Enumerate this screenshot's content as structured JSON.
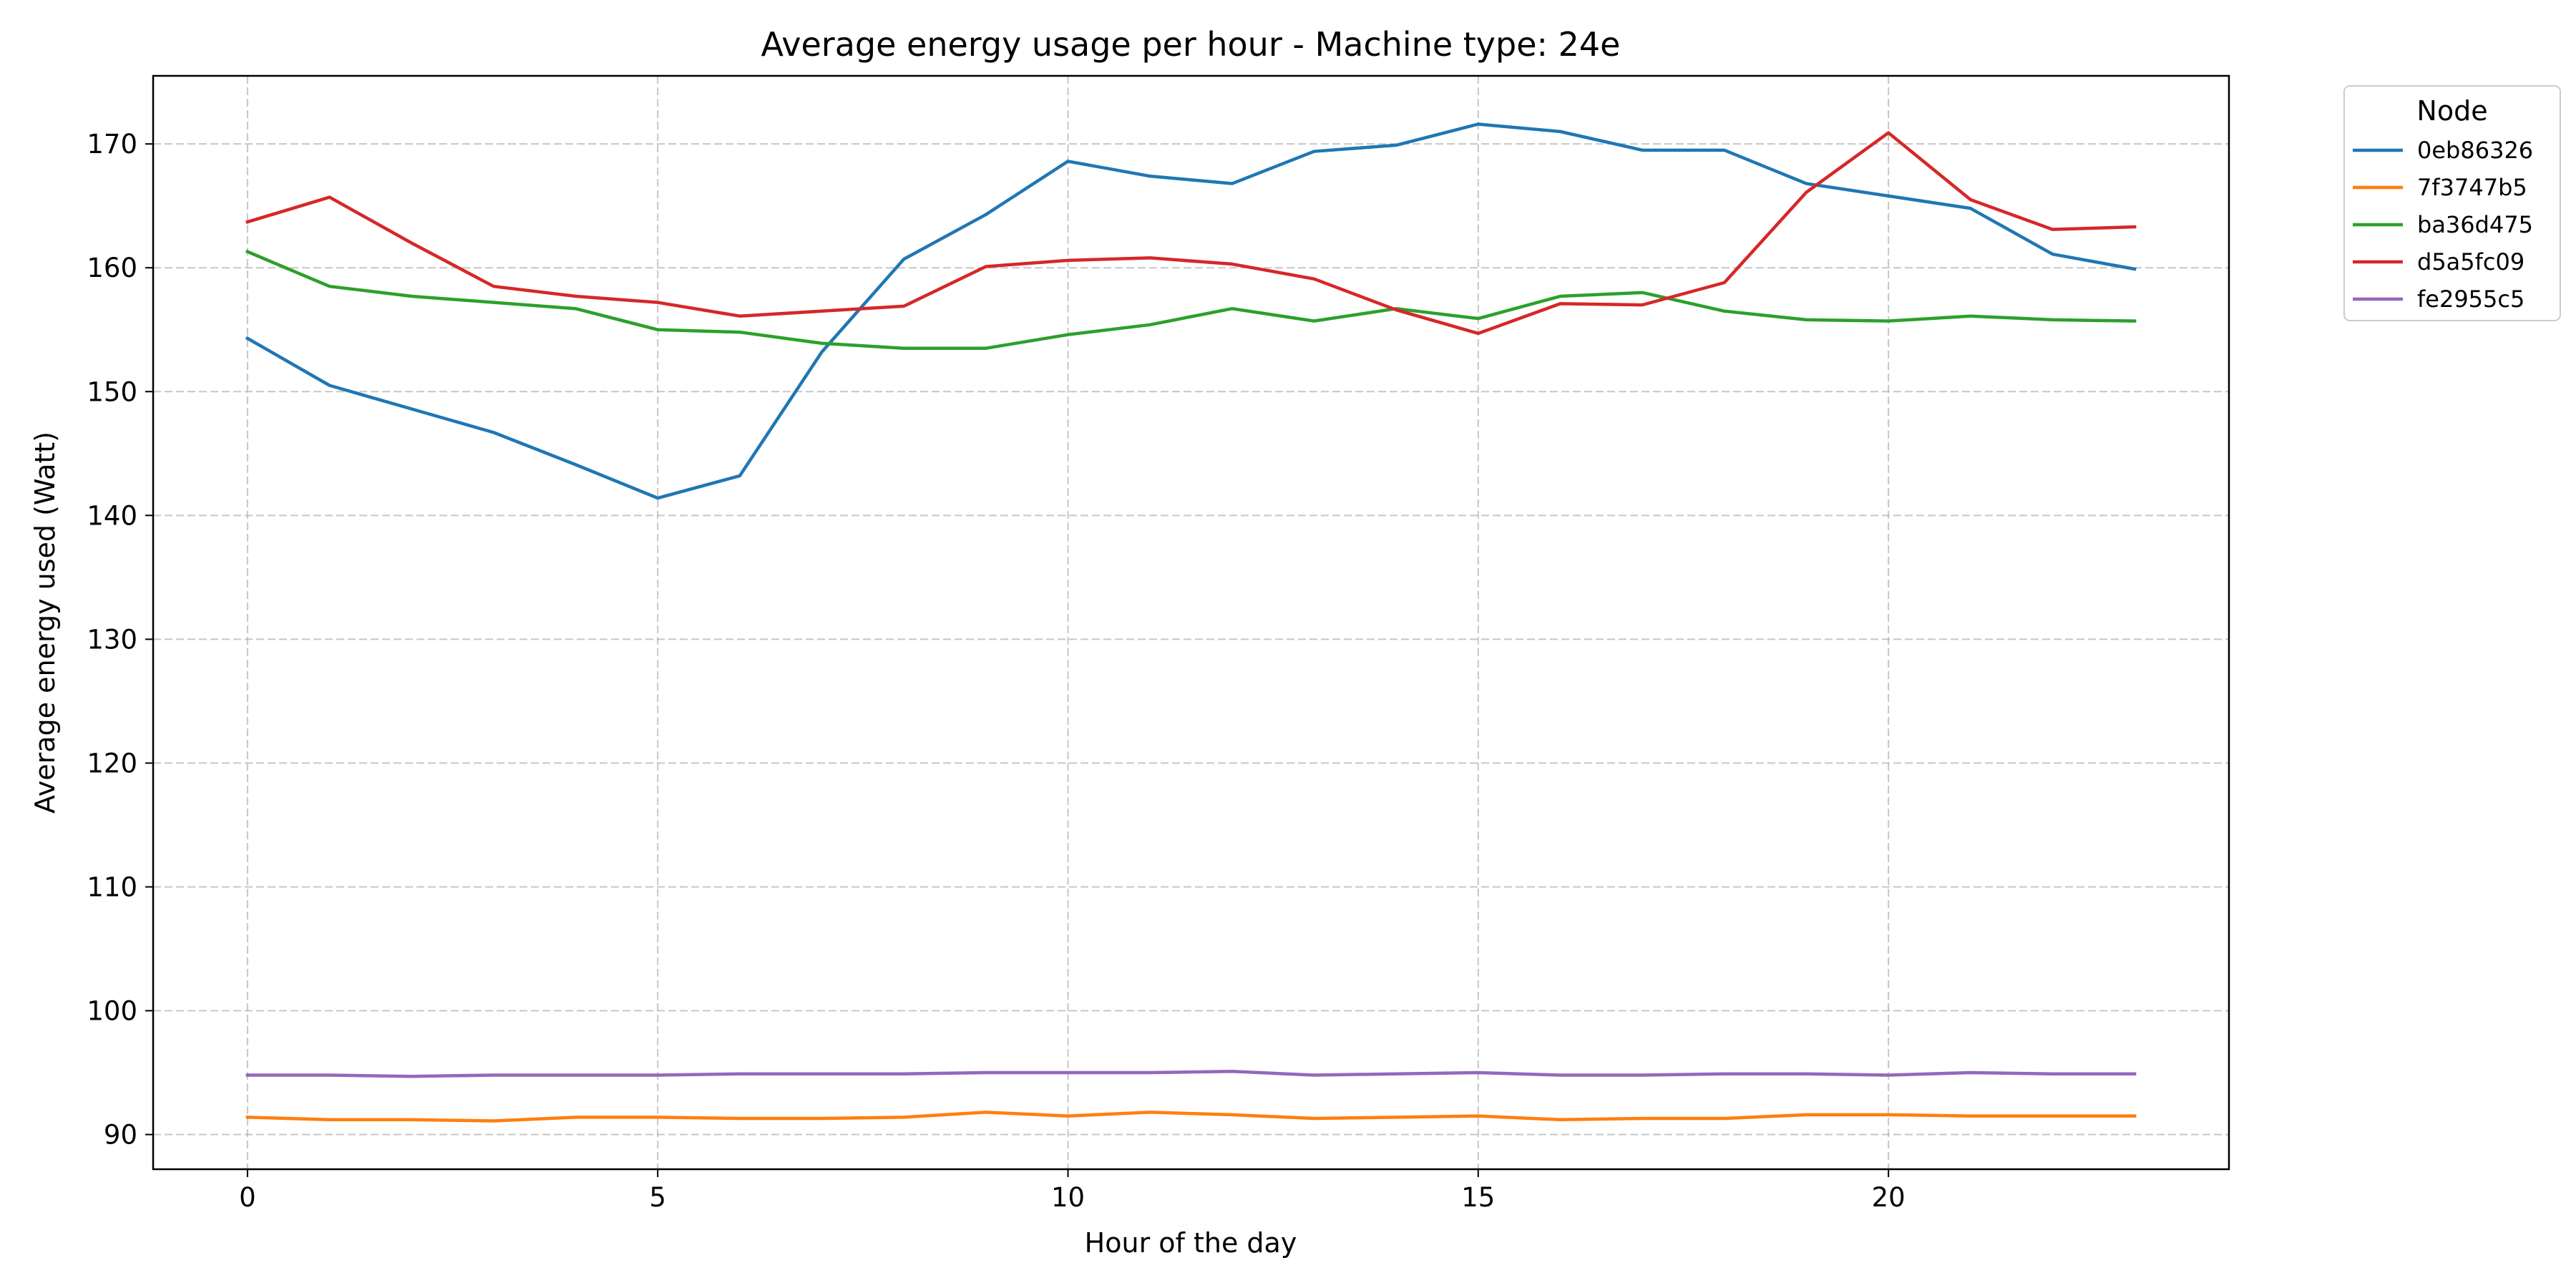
{
  "chart_data": {
    "type": "line",
    "title": "Average energy usage per hour - Machine type: 24e",
    "xlabel": "Hour of the day",
    "ylabel": "Average energy used (Watt)",
    "xlim": [
      -1.15,
      24.15
    ],
    "ylim": [
      87.2,
      175.5
    ],
    "xticks": [
      0,
      5,
      10,
      15,
      20
    ],
    "yticks": [
      90,
      100,
      110,
      120,
      130,
      140,
      150,
      160,
      170
    ],
    "grid": true,
    "legend_title": "Node",
    "legend_position": "outside-top-right",
    "x": [
      0,
      1,
      2,
      3,
      4,
      5,
      6,
      7,
      8,
      9,
      10,
      11,
      12,
      13,
      14,
      15,
      16,
      17,
      18,
      19,
      20,
      21,
      22,
      23
    ],
    "series": [
      {
        "name": "0eb86326",
        "color": "#1f77b4",
        "values": [
          154.3,
          150.5,
          148.6,
          146.7,
          144.1,
          141.4,
          143.2,
          153.2,
          160.7,
          164.3,
          168.6,
          167.4,
          166.8,
          169.4,
          169.9,
          171.6,
          171.0,
          169.5,
          169.5,
          166.8,
          165.8,
          164.8,
          161.1,
          159.9
        ]
      },
      {
        "name": "7f3747b5",
        "color": "#ff7f0e",
        "values": [
          91.4,
          91.2,
          91.2,
          91.1,
          91.4,
          91.4,
          91.3,
          91.3,
          91.4,
          91.8,
          91.5,
          91.8,
          91.6,
          91.3,
          91.4,
          91.5,
          91.2,
          91.3,
          91.3,
          91.6,
          91.6,
          91.5,
          91.5,
          91.5
        ]
      },
      {
        "name": "ba36d475",
        "color": "#2ca02c",
        "values": [
          161.3,
          158.5,
          157.7,
          157.2,
          156.7,
          155.0,
          154.8,
          153.9,
          153.5,
          153.5,
          154.6,
          155.4,
          156.7,
          155.7,
          156.7,
          155.9,
          157.7,
          158.0,
          156.5,
          155.8,
          155.7,
          156.1,
          155.8,
          155.7
        ]
      },
      {
        "name": "d5a5fc09",
        "color": "#d62728",
        "values": [
          163.7,
          165.7,
          162.0,
          158.5,
          157.7,
          157.2,
          156.1,
          156.5,
          156.9,
          160.1,
          160.6,
          160.8,
          160.3,
          159.1,
          156.6,
          154.7,
          157.1,
          157.0,
          158.8,
          166.1,
          170.9,
          165.5,
          163.1,
          163.3
        ]
      },
      {
        "name": "fe2955c5",
        "color": "#9467bd",
        "values": [
          94.8,
          94.8,
          94.7,
          94.8,
          94.8,
          94.8,
          94.9,
          94.9,
          94.9,
          95.0,
          95.0,
          95.0,
          95.1,
          94.8,
          94.9,
          95.0,
          94.8,
          94.8,
          94.9,
          94.9,
          94.8,
          95.0,
          94.9,
          94.9
        ]
      }
    ]
  }
}
